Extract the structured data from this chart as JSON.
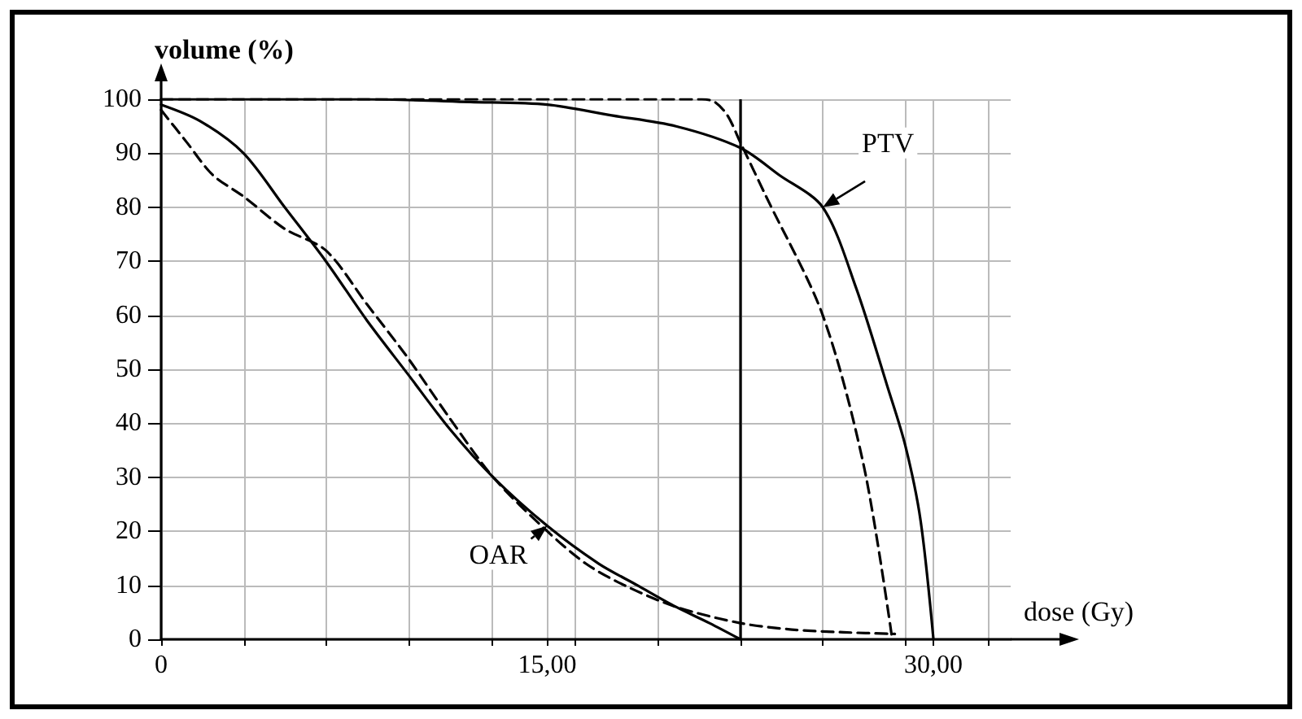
{
  "chart_data": {
    "type": "line",
    "xlabel": "dose (Gy)",
    "ylabel": "volume (%)",
    "xlim": [
      0,
      33
    ],
    "ylim": [
      0,
      100
    ],
    "xticks": [
      {
        "value": 0,
        "label": "0"
      },
      {
        "value": 3.21,
        "label": null
      },
      {
        "value": 6.43,
        "label": null
      },
      {
        "value": 9.64,
        "label": null
      },
      {
        "value": 12.86,
        "label": null
      },
      {
        "value": 15,
        "label": "15,00"
      },
      {
        "value": 16.07,
        "label": null
      },
      {
        "value": 19.29,
        "label": null
      },
      {
        "value": 22.5,
        "label": null
      },
      {
        "value": 25.71,
        "label": null
      },
      {
        "value": 28.93,
        "label": null
      },
      {
        "value": 30,
        "label": "30,00"
      },
      {
        "value": 32.14,
        "label": null
      }
    ],
    "yticks": [
      0,
      10,
      20,
      30,
      40,
      50,
      60,
      70,
      80,
      90,
      100
    ],
    "grid": true,
    "marker": "none",
    "ref_lines": [
      {
        "axis": "x",
        "value": 22.5,
        "label": null,
        "color": "#000000",
        "line_style": "solid"
      }
    ],
    "annotations": [
      {
        "text": "PTV",
        "x": 25.7,
        "y": 80
      },
      {
        "text": "OAR",
        "x": 15,
        "y": 21
      }
    ],
    "series": [
      {
        "color": "#000000",
        "line_style": "solid",
        "x": [
          0,
          8,
          12,
          15,
          17.5,
          20,
          22.5,
          24,
          25.7,
          27,
          28.2,
          28.9,
          29.5,
          30
        ],
        "values": [
          100,
          100,
          99.5,
          99,
          97,
          95,
          91,
          86,
          80,
          65,
          47,
          36,
          22,
          0
        ]
      },
      {
        "color": "#000000",
        "line_style": "dashed",
        "x": [
          0,
          15,
          20,
          21,
          21.5,
          22,
          22.5,
          23.5,
          25.7,
          27.3,
          28.4
        ],
        "values": [
          100,
          100,
          100,
          100,
          99.5,
          97,
          92,
          82,
          60,
          32,
          0
        ]
      },
      {
        "color": "#000000",
        "line_style": "solid",
        "x": [
          0,
          1.5,
          3.2,
          4.8,
          6.4,
          8,
          9.6,
          11.2,
          12.9,
          15,
          17,
          18.5,
          20,
          21.3,
          22.5
        ],
        "values": [
          99,
          96,
          90,
          80,
          70,
          59,
          49,
          39,
          30,
          21,
          14,
          10,
          6,
          3,
          0
        ]
      },
      {
        "color": "#000000",
        "line_style": "dashed",
        "x": [
          0,
          1,
          2,
          3.2,
          4.8,
          6.4,
          8,
          9.6,
          11.2,
          12.9,
          15,
          16.5,
          18,
          20,
          22.5,
          24.5,
          26.5,
          28.5
        ],
        "values": [
          98,
          92,
          86,
          82,
          76,
          72,
          62,
          52,
          41,
          30,
          20,
          14,
          10,
          6,
          3,
          1.8,
          1.3,
          1
        ]
      }
    ]
  }
}
